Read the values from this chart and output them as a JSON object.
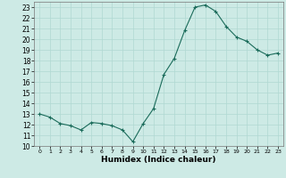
{
  "x": [
    0,
    1,
    2,
    3,
    4,
    5,
    6,
    7,
    8,
    9,
    10,
    11,
    12,
    13,
    14,
    15,
    16,
    17,
    18,
    19,
    20,
    21,
    22,
    23
  ],
  "y": [
    13,
    12.7,
    12.1,
    11.9,
    11.5,
    12.2,
    12.1,
    11.9,
    11.5,
    10.4,
    12.1,
    13.5,
    16.7,
    18.2,
    20.8,
    23.0,
    23.2,
    22.6,
    21.2,
    20.2,
    19.8,
    19.0,
    18.5,
    18.7
  ],
  "line_color": "#1a6b5a",
  "marker": "+",
  "marker_color": "#1a6b5a",
  "bg_color": "#cdeae5",
  "grid_color": "#b0d8d2",
  "xlabel": "Humidex (Indice chaleur)",
  "ylim": [
    10,
    23.5
  ],
  "yticks": [
    10,
    11,
    12,
    13,
    14,
    15,
    16,
    17,
    18,
    19,
    20,
    21,
    22,
    23
  ],
  "xlim": [
    -0.5,
    23.5
  ],
  "xticks": [
    0,
    1,
    2,
    3,
    4,
    5,
    6,
    7,
    8,
    9,
    10,
    11,
    12,
    13,
    14,
    15,
    16,
    17,
    18,
    19,
    20,
    21,
    22,
    23
  ]
}
